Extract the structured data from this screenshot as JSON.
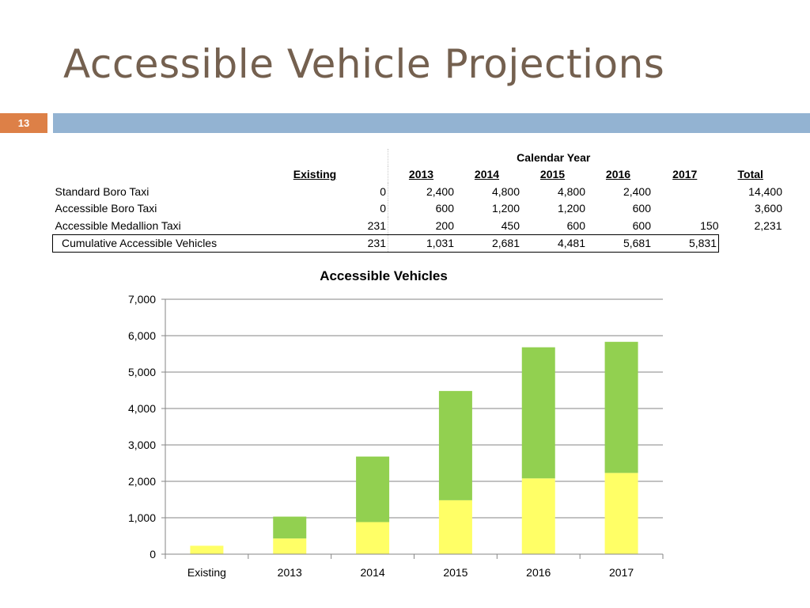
{
  "slide": {
    "title": "Accessible Vehicle Projections",
    "number": "13"
  },
  "colors": {
    "title": "#74604f",
    "number_box": "#dd8047",
    "band": "#93b3d2",
    "series_cumulative_base": "#ffff66",
    "series_boro_added": "#92d050"
  },
  "table": {
    "group_header": "Calendar Year",
    "columns": [
      "Existing",
      "2013",
      "2014",
      "2015",
      "2016",
      "2017",
      "Total"
    ],
    "rows": [
      {
        "label": "Standard Boro Taxi",
        "values": [
          "0",
          "2,400",
          "4,800",
          "4,800",
          "2,400",
          "",
          "14,400"
        ]
      },
      {
        "label": "Accessible Boro Taxi",
        "values": [
          "0",
          "600",
          "1,200",
          "1,200",
          "600",
          "",
          "3,600"
        ]
      },
      {
        "label": "Accessible Medallion Taxi",
        "values": [
          "231",
          "200",
          "450",
          "600",
          "600",
          "150",
          "2,231"
        ]
      },
      {
        "label": "Cumulative Accessible Vehicles",
        "values": [
          "231",
          "1,031",
          "2,681",
          "4,481",
          "5,681",
          "5,831",
          ""
        ]
      }
    ]
  },
  "chart_data": {
    "type": "bar",
    "stacked": true,
    "title": "Accessible Vehicles",
    "xlabel": "",
    "ylabel": "",
    "categories": [
      "Existing",
      "2013",
      "2014",
      "2015",
      "2016",
      "2017"
    ],
    "series": [
      {
        "color": "#ffff66",
        "values": [
          231,
          431,
          881,
          1481,
          2081,
          2231
        ]
      },
      {
        "color": "#92d050",
        "values": [
          0,
          600,
          1800,
          3000,
          3600,
          3600
        ]
      }
    ],
    "ylim": [
      0,
      7000
    ],
    "yticks": [
      0,
      1000,
      2000,
      3000,
      4000,
      5000,
      6000,
      7000
    ],
    "ytick_labels": [
      "0",
      "1,000",
      "2,000",
      "3,000",
      "4,000",
      "5,000",
      "6,000",
      "7,000"
    ],
    "grid": true,
    "legend": "none"
  }
}
